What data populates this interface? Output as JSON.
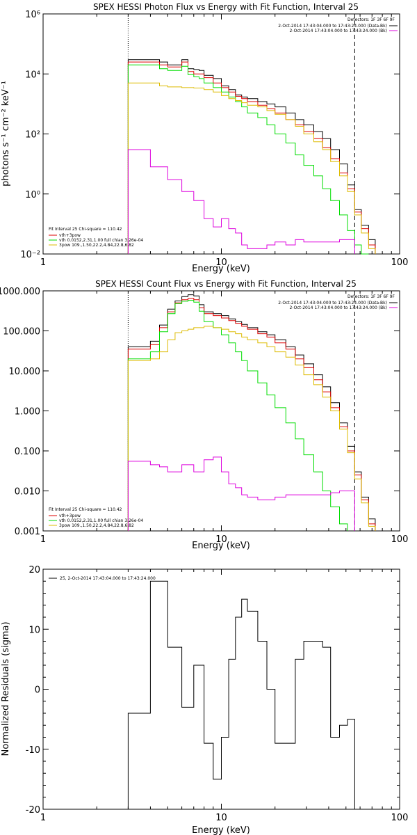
{
  "panels": [
    {
      "title": "SPEX HESSI Photon Flux vs Energy with Fit Function, Interval 25",
      "xlabel": "Energy (keV)",
      "ylabel": "photons s⁻¹ cm⁻² keV⁻¹",
      "x_ticks": [
        "1",
        "10",
        "100"
      ],
      "y_ticks": [
        "10⁻²",
        "10⁰",
        "10²",
        "10⁴",
        "10⁶"
      ],
      "header_lines": [
        "Detectors: 1F 3F 6F 9F",
        "2-Oct-2014 17:43:04.000 to 17:43:24.000 (Data-Bk)",
        "2-Oct-2014 17:43:04.000 to 17:43:24.000 (Bk)"
      ],
      "fit_lines": [
        "Fit Interval 25   Chi-square = 110.42",
        "vth+3pow",
        "vth 0.0152,2.31,1.00  full chian 3.26e-04",
        "3pow 109.,1.50,22.2,4.84,22.8,6.82"
      ]
    },
    {
      "title": "SPEX HESSI Count Flux vs Energy with Fit Function, Interval 25",
      "xlabel": "Energy (keV)",
      "x_ticks": [
        "1",
        "10",
        "100"
      ],
      "y_ticks": [
        "0.001",
        "0.010",
        "0.100",
        "1.000",
        "10.000",
        "100.000",
        "1000.000"
      ],
      "header_lines": [
        "Detectors: 1F 3F 6F 9F",
        "2-Oct-2014 17:43:04.000 to 17:43:24.000 (Data-Bk)",
        "2-Oct-2014 17:43:04.000 to 17:43:24.000 (Bk)"
      ],
      "fit_lines": [
        "Fit Interval 25   Chi-square = 110.42",
        "vth+3pow",
        "vth 0.0152,2.31,1.00  full chian 3.26e-04",
        "3pow 109.,1.50,22.2,4.84,22.8,6.82"
      ]
    },
    {
      "xlabel": "Energy (keV)",
      "ylabel": "Normalized Residuals (sigma)",
      "x_ticks": [
        "1",
        "10",
        "100"
      ],
      "y_ticks": [
        "-20",
        "-10",
        "0",
        "10",
        "20"
      ],
      "legend": "25,  2-Oct-2014 17:43:04.000 to 17:43:24.000"
    }
  ],
  "colors": {
    "data": "#000000",
    "total_fit": "#dd0000",
    "vth": "#00dd00",
    "pow": "#ddbb00",
    "background": "#dd00dd"
  },
  "chart_data": [
    {
      "type": "line",
      "xscale": "log",
      "yscale": "log",
      "xlim": [
        1,
        100
      ],
      "ylim": [
        0.01,
        1000000
      ],
      "edges": [
        3.0,
        3.5,
        4.0,
        4.5,
        5.0,
        5.5,
        6.0,
        6.5,
        7.0,
        7.5,
        8.0,
        9.0,
        10.0,
        11.0,
        12.0,
        13.0,
        14.0,
        16.0,
        18.0,
        20.0,
        23.0,
        26.0,
        29.0,
        33.0,
        37.0,
        41.0,
        46.0,
        51.0,
        56.0,
        61.0,
        67.0,
        73.0
      ],
      "series": [
        {
          "key": "data",
          "values": [
            30000,
            30000,
            30000,
            25000,
            20000,
            20000,
            30000,
            15000,
            14000,
            13000,
            9000,
            7000,
            4000,
            3000,
            2000,
            1700,
            1500,
            1200,
            1000,
            800,
            500,
            300,
            200,
            120,
            70,
            30,
            10,
            2,
            0.3,
            0.09,
            0.03
          ]
        },
        {
          "key": "total_fit",
          "values": [
            25000,
            25000,
            25000,
            20000,
            17000,
            17000,
            25000,
            12000,
            10000,
            10000,
            7500,
            5000,
            3500,
            2500,
            1800,
            1500,
            1200,
            900,
            700,
            500,
            300,
            200,
            120,
            70,
            35,
            15,
            5,
            1.5,
            0.25,
            0.07,
            0.02
          ]
        },
        {
          "key": "vth",
          "values": [
            20000,
            20000,
            20000,
            15000,
            13000,
            13000,
            18000,
            9500,
            8000,
            7000,
            5000,
            3500,
            2500,
            1700,
            1200,
            800,
            500,
            350,
            200,
            100,
            50,
            20,
            9,
            4,
            1.5,
            0.6,
            0.2,
            0.06,
            0.02,
            0.01
          ]
        },
        {
          "key": "pow",
          "values": [
            5000,
            5000,
            5000,
            4000,
            3700,
            3700,
            3500,
            3500,
            3400,
            3400,
            3000,
            2500,
            1900,
            1500,
            1300,
            1100,
            900,
            800,
            600,
            450,
            300,
            180,
            100,
            55,
            30,
            12,
            4,
            1.2,
            0.2,
            0.05,
            0.015
          ]
        },
        {
          "key": "background",
          "values": [
            30,
            30,
            8,
            8,
            3,
            3,
            1.2,
            1.2,
            0.6,
            0.6,
            0.15,
            0.08,
            0.15,
            0.07,
            0.05,
            0.02,
            0.015,
            0.015,
            0.02,
            0.025,
            0.02,
            0.03,
            0.025,
            0.025,
            0.025,
            0.025,
            0.03,
            0.03
          ]
        }
      ]
    },
    {
      "type": "line",
      "xscale": "log",
      "yscale": "log",
      "xlim": [
        1,
        100
      ],
      "ylim": [
        0.001,
        1000
      ],
      "edges": [
        3.0,
        3.5,
        4.0,
        4.5,
        5.0,
        5.5,
        6.0,
        6.5,
        7.0,
        7.5,
        8.0,
        9.0,
        10.0,
        11.0,
        12.0,
        13.0,
        14.0,
        16.0,
        18.0,
        20.0,
        23.0,
        26.0,
        29.0,
        33.0,
        37.0,
        41.0,
        46.0,
        51.0,
        56.0,
        61.0,
        67.0,
        73.0
      ],
      "series": [
        {
          "key": "data",
          "values": [
            40,
            40,
            55,
            140,
            350,
            560,
            720,
            800,
            750,
            450,
            300,
            270,
            240,
            200,
            170,
            145,
            120,
            95,
            80,
            60,
            40,
            25,
            15,
            8,
            4,
            1.6,
            0.5,
            0.13,
            0.03,
            0.007,
            0.002
          ]
        },
        {
          "key": "total_fit",
          "values": [
            35,
            35,
            45,
            120,
            300,
            500,
            600,
            650,
            600,
            380,
            270,
            240,
            210,
            180,
            155,
            130,
            110,
            85,
            70,
            50,
            35,
            20,
            12,
            6,
            3,
            1.2,
            0.4,
            0.1,
            0.025,
            0.006,
            0.0015
          ]
        },
        {
          "key": "vth",
          "values": [
            20,
            20,
            30,
            95,
            270,
            480,
            550,
            580,
            520,
            310,
            170,
            120,
            80,
            50,
            30,
            18,
            10,
            5,
            2.5,
            1.2,
            0.5,
            0.2,
            0.08,
            0.03,
            0.01,
            0.004,
            0.0015
          ]
        },
        {
          "key": "pow",
          "values": [
            18,
            18,
            20,
            30,
            60,
            90,
            100,
            110,
            120,
            120,
            130,
            120,
            110,
            95,
            85,
            70,
            60,
            50,
            40,
            30,
            22,
            14,
            8,
            4.5,
            2.2,
            1,
            0.35,
            0.09,
            0.02,
            0.005,
            0.0013
          ]
        },
        {
          "key": "background",
          "values": [
            0.055,
            0.055,
            0.045,
            0.04,
            0.03,
            0.03,
            0.045,
            0.045,
            0.03,
            0.03,
            0.06,
            0.07,
            0.03,
            0.015,
            0.012,
            0.008,
            0.007,
            0.006,
            0.006,
            0.007,
            0.008,
            0.008,
            0.008,
            0.008,
            0.008,
            0.009,
            0.01,
            0.01
          ]
        }
      ]
    },
    {
      "type": "line",
      "xscale": "log",
      "xlim": [
        1,
        100
      ],
      "ylim": [
        -20,
        20
      ],
      "edges": [
        3.0,
        3.5,
        4.0,
        4.5,
        5.0,
        5.5,
        6.0,
        6.5,
        7.0,
        7.5,
        8.0,
        9.0,
        10.0,
        11.0,
        12.0,
        13.0,
        14.0,
        16.0,
        18.0,
        20.0,
        23.0,
        26.0,
        29.0,
        33.0,
        37.0,
        41.0,
        46.0,
        51.0,
        56.0
      ],
      "series": [
        {
          "key": "data",
          "values": [
            -4,
            -4,
            18,
            18,
            7,
            7,
            -3,
            -3,
            4,
            4,
            -9,
            -15,
            -8,
            5,
            12,
            15,
            13,
            8,
            0,
            -9,
            -9,
            5,
            8,
            8,
            7,
            -8,
            -6,
            -5
          ]
        }
      ]
    }
  ]
}
